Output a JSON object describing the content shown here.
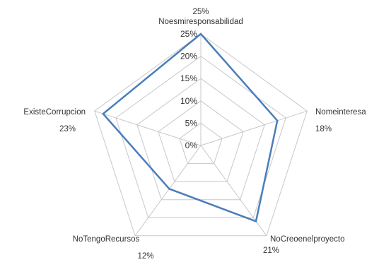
{
  "chart_data": {
    "type": "radar",
    "categories": [
      "Noesmiresponsabilidad",
      "Nomeinteresa",
      "NoCreoenelproyecto",
      "NoTengoRecursos",
      "ExisteCorrupcion"
    ],
    "value_labels": [
      "25%",
      "18%",
      "21%",
      "12%",
      "23%"
    ],
    "series": [
      {
        "values": [
          25,
          18,
          21,
          12,
          23
        ]
      }
    ],
    "r_ticks": [
      "0%",
      "5%",
      "10%",
      "15%",
      "20%",
      "25%"
    ],
    "r_tick_values": [
      0,
      5,
      10,
      15,
      20,
      25
    ],
    "rlim": [
      0,
      25
    ],
    "grid": true,
    "legend": "none",
    "colors": {
      "series": "#4a7ebb",
      "grid": "#c8c8c8"
    }
  }
}
